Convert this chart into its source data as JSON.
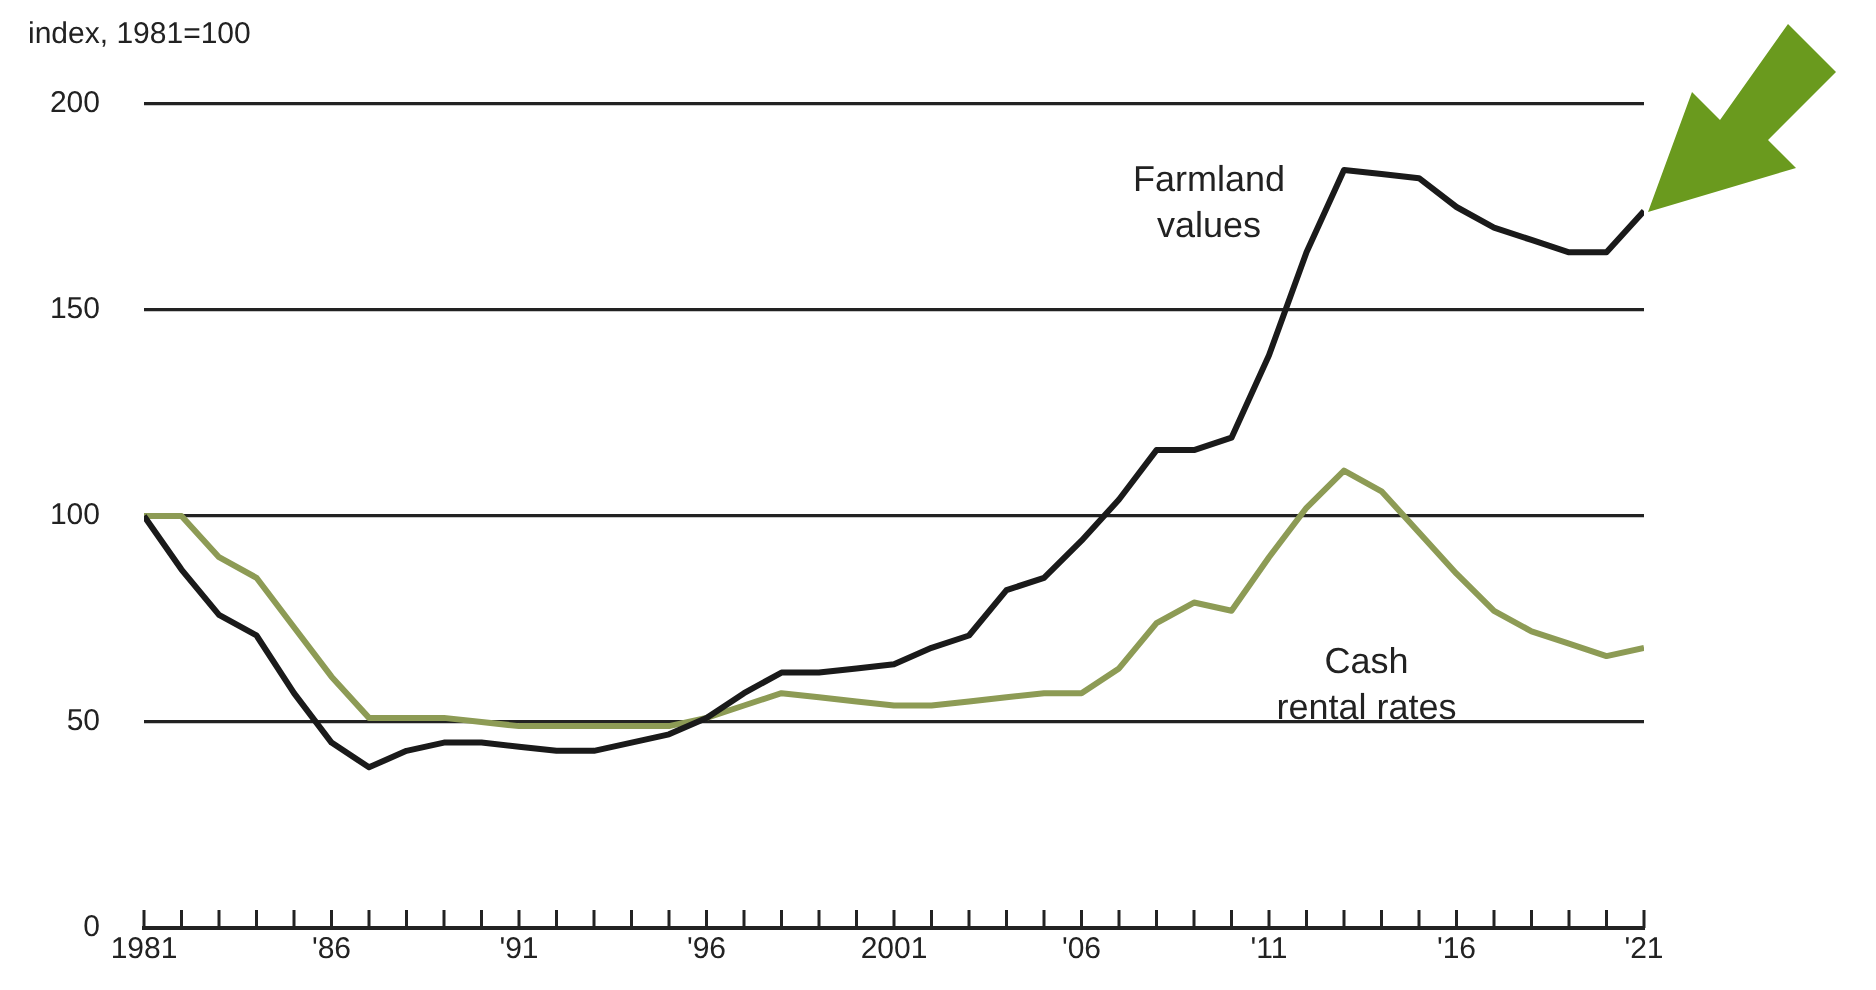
{
  "chart_data": {
    "type": "line",
    "ylabel": "index, 1981=100",
    "x": [
      1981,
      1982,
      1983,
      1984,
      1985,
      1986,
      1987,
      1988,
      1989,
      1990,
      1991,
      1992,
      1993,
      1994,
      1995,
      1996,
      1997,
      1998,
      1999,
      2000,
      2001,
      2002,
      2003,
      2004,
      2005,
      2006,
      2007,
      2008,
      2009,
      2010,
      2011,
      2012,
      2013,
      2014,
      2015,
      2016,
      2017,
      2018,
      2019,
      2020,
      2021
    ],
    "series": [
      {
        "name": "Farmland values",
        "color": "#1a1a1a",
        "values": [
          100,
          87,
          76,
          71,
          57,
          45,
          39,
          43,
          45,
          45,
          44,
          43,
          43,
          45,
          47,
          51,
          57,
          62,
          62,
          63,
          64,
          68,
          71,
          82,
          85,
          94,
          104,
          116,
          116,
          119,
          139,
          164,
          184,
          183,
          182,
          175,
          170,
          167,
          164,
          164,
          174
        ]
      },
      {
        "name": "Cash rental rates",
        "color": "#8d9b55",
        "values": [
          100,
          100,
          90,
          85,
          73,
          61,
          51,
          51,
          51,
          50,
          49,
          49,
          49,
          49,
          49,
          51,
          54,
          57,
          56,
          55,
          54,
          54,
          55,
          56,
          57,
          57,
          63,
          74,
          79,
          77,
          90,
          102,
          111,
          106,
          96,
          86,
          77,
          72,
          69,
          66,
          68
        ]
      }
    ],
    "xlim": [
      1981,
      2021
    ],
    "xticks": [
      1981,
      {
        "value": 1982,
        "label": null
      },
      {
        "value": 1983,
        "label": null
      },
      {
        "value": 1984,
        "label": null
      },
      {
        "value": 1985,
        "label": null
      },
      {
        "value": 1986,
        "label": "'86"
      },
      {
        "value": 1987,
        "label": null
      },
      {
        "value": 1988,
        "label": null
      },
      {
        "value": 1989,
        "label": null
      },
      {
        "value": 1990,
        "label": null
      },
      {
        "value": 1991,
        "label": "'91"
      },
      {
        "value": 1992,
        "label": null
      },
      {
        "value": 1993,
        "label": null
      },
      {
        "value": 1994,
        "label": null
      },
      {
        "value": 1995,
        "label": null
      },
      {
        "value": 1996,
        "label": "'96"
      },
      {
        "value": 1997,
        "label": null
      },
      {
        "value": 1998,
        "label": null
      },
      {
        "value": 1999,
        "label": null
      },
      {
        "value": 2000,
        "label": null
      },
      2001,
      {
        "value": 2002,
        "label": null
      },
      {
        "value": 2003,
        "label": null
      },
      {
        "value": 2004,
        "label": null
      },
      {
        "value": 2005,
        "label": null
      },
      {
        "value": 2006,
        "label": "'06"
      },
      {
        "value": 2007,
        "label": null
      },
      {
        "value": 2008,
        "label": null
      },
      {
        "value": 2009,
        "label": null
      },
      {
        "value": 2010,
        "label": null
      },
      {
        "value": 2011,
        "label": "'11"
      },
      {
        "value": 2012,
        "label": null
      },
      {
        "value": 2013,
        "label": null
      },
      {
        "value": 2014,
        "label": null
      },
      {
        "value": 2015,
        "label": null
      },
      {
        "value": 2016,
        "label": "'16"
      },
      {
        "value": 2017,
        "label": null
      },
      {
        "value": 2018,
        "label": null
      },
      {
        "value": 2019,
        "label": null
      },
      {
        "value": 2020,
        "label": null
      },
      {
        "value": 2021,
        "label": "'21"
      }
    ],
    "ylim": [
      0,
      200
    ],
    "yticks": [
      0,
      50,
      100,
      150,
      200
    ],
    "grid": "y",
    "legend": false,
    "marker": "none",
    "line_style": "solid"
  }
}
